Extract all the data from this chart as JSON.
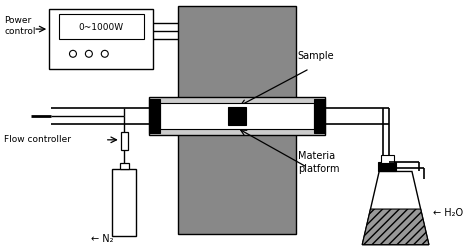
{
  "bg_color": "#ffffff",
  "gray_color": "#888888",
  "light_gray": "#cccccc",
  "black": "#000000",
  "white": "#ffffff",
  "labels": {
    "power_control": "Power\ncontrol",
    "wattage": "0~1000W",
    "flow_controller": "Flow controller",
    "n2": "← N₂",
    "sample": "Sample",
    "materia_platform": "Materia\nplatform",
    "h2o": "← H₂O"
  },
  "figsize": [
    4.74,
    2.49
  ],
  "dpi": 100
}
